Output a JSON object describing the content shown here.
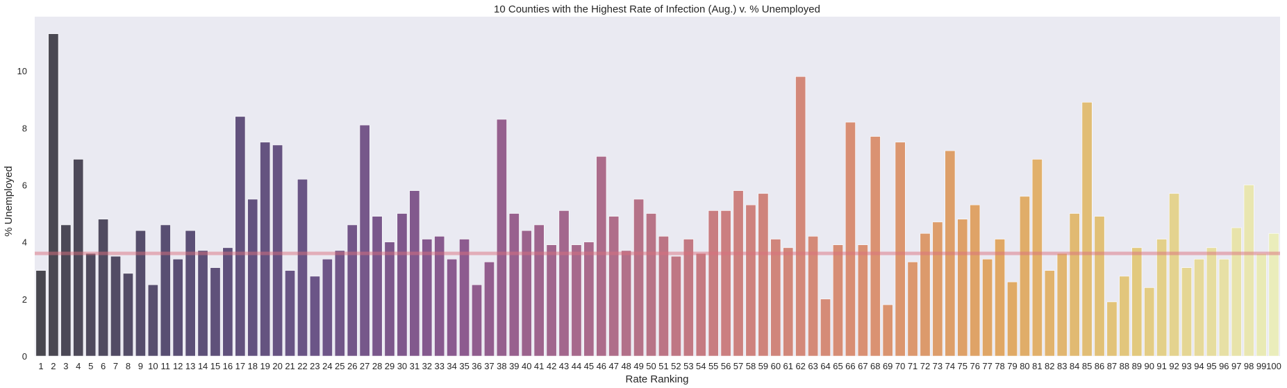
{
  "chart_data": {
    "type": "bar",
    "title": "10 Counties with the Highest Rate of Infection (Aug.) v. % Unemployed",
    "xlabel": "Rate Ranking",
    "ylabel": "% Unemployed",
    "ylim": [
      0,
      11.9
    ],
    "yticks": [
      0,
      2,
      4,
      6,
      8,
      10
    ],
    "grid": false,
    "background": "#eaeaf2",
    "reference_line": {
      "value": 3.6,
      "color": "#d9707e"
    },
    "palette_stops": [
      "#48474f",
      "#5a4f75",
      "#6b5587",
      "#8a5a8f",
      "#a96a8c",
      "#cb7f80",
      "#d99073",
      "#e0a764",
      "#e2c97e",
      "#eaedbb"
    ],
    "categories": [
      "1",
      "2",
      "3",
      "4",
      "5",
      "6",
      "7",
      "8",
      "9",
      "10",
      "11",
      "12",
      "13",
      "14",
      "15",
      "16",
      "17",
      "18",
      "19",
      "20",
      "21",
      "22",
      "23",
      "24",
      "25",
      "26",
      "27",
      "28",
      "29",
      "30",
      "31",
      "32",
      "33",
      "34",
      "35",
      "36",
      "37",
      "38",
      "39",
      "40",
      "41",
      "42",
      "43",
      "44",
      "45",
      "46",
      "47",
      "48",
      "49",
      "50",
      "51",
      "52",
      "53",
      "54",
      "55",
      "56",
      "57",
      "58",
      "59",
      "60",
      "61",
      "62",
      "63",
      "64",
      "65",
      "66",
      "67",
      "68",
      "69",
      "70",
      "71",
      "72",
      "73",
      "74",
      "75",
      "76",
      "77",
      "78",
      "79",
      "80",
      "81",
      "82",
      "83",
      "84",
      "85",
      "86",
      "87",
      "88",
      "89",
      "90",
      "91",
      "92",
      "93",
      "94",
      "95",
      "96",
      "97",
      "98",
      "99",
      "100"
    ],
    "values": [
      3.0,
      11.3,
      4.6,
      6.9,
      3.6,
      4.8,
      3.5,
      2.9,
      4.4,
      2.5,
      4.6,
      3.4,
      4.4,
      3.7,
      3.1,
      3.8,
      8.4,
      5.5,
      7.5,
      7.4,
      3.0,
      6.2,
      2.8,
      3.4,
      3.7,
      4.6,
      8.1,
      4.9,
      4.0,
      5.0,
      5.8,
      4.1,
      4.2,
      3.4,
      4.1,
      2.5,
      3.3,
      8.3,
      5.0,
      4.4,
      4.6,
      3.9,
      5.1,
      3.9,
      4.0,
      7.0,
      4.9,
      3.7,
      5.5,
      5.0,
      4.2,
      3.5,
      4.1,
      3.6,
      5.1,
      5.1,
      5.8,
      5.3,
      5.7,
      4.1,
      3.8,
      9.8,
      4.2,
      2.0,
      3.9,
      8.2,
      3.9,
      7.7,
      1.8,
      7.5,
      3.3,
      4.3,
      4.7,
      7.2,
      4.8,
      5.3,
      3.4,
      4.1,
      2.6,
      5.6,
      6.9,
      3.0,
      3.6,
      5.0,
      8.9,
      4.9,
      1.9,
      2.8,
      3.8,
      2.4,
      4.1,
      5.7,
      3.1,
      3.4,
      3.8,
      3.4,
      4.5,
      6.0,
      3.6,
      4.3
    ]
  }
}
